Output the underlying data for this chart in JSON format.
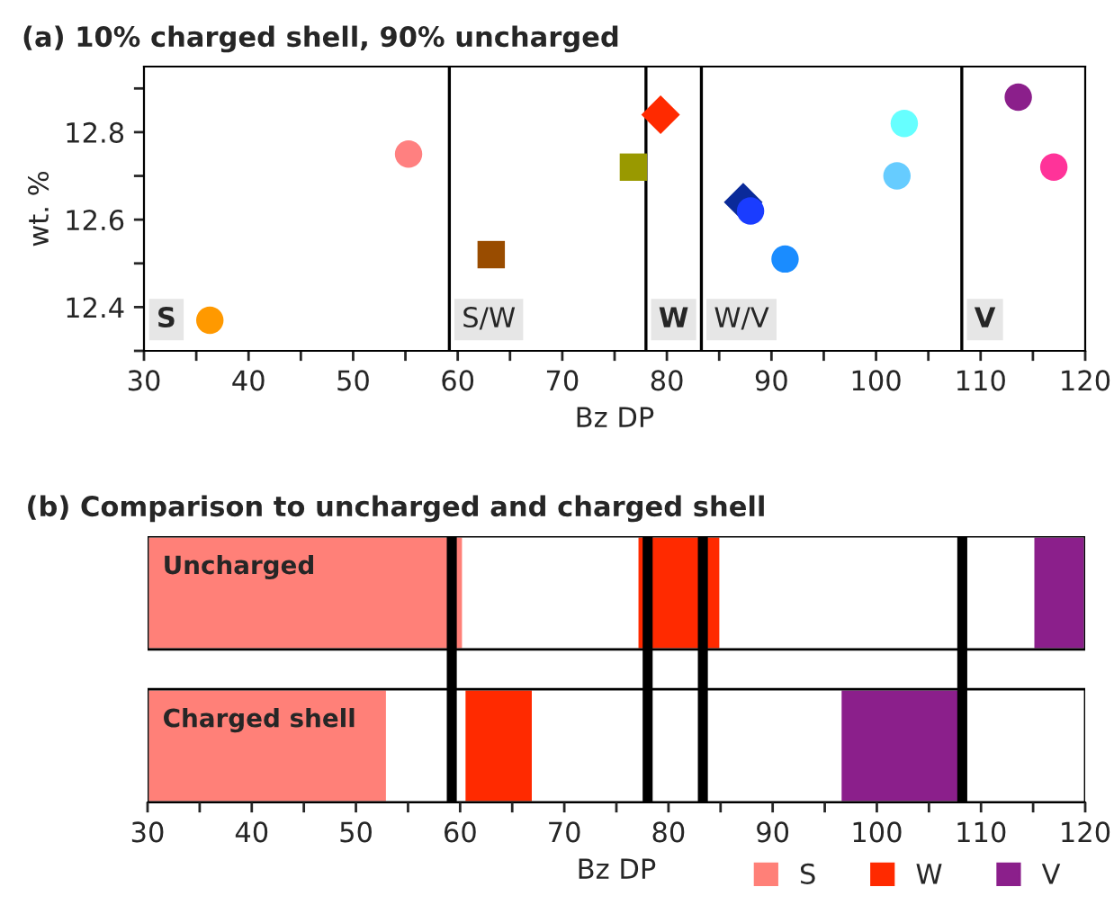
{
  "chart_data": [
    {
      "type": "scatter",
      "title": "(a) 10% charged shell, 90% uncharged",
      "xlabel": "Bz DP",
      "ylabel": "wt. %",
      "xlim": [
        30,
        120
      ],
      "xticks": [
        30,
        {
          "value": 35,
          "label": null
        },
        40,
        {
          "value": 45,
          "label": null
        },
        50,
        {
          "value": 55,
          "label": null
        },
        60,
        {
          "value": 65,
          "label": null
        },
        70,
        {
          "value": 75,
          "label": null
        },
        80,
        {
          "value": 85,
          "label": null
        },
        90,
        {
          "value": 95,
          "label": null
        },
        100,
        {
          "value": 105,
          "label": null
        },
        110,
        {
          "value": 115,
          "label": null
        },
        120
      ],
      "ylim": [
        12.3,
        12.95
      ],
      "yticks": [
        {
          "value": 12.3,
          "label": null
        },
        12.4,
        {
          "value": 12.5,
          "label": null
        },
        12.6,
        {
          "value": 12.7,
          "label": null
        },
        12.8,
        {
          "value": 12.9,
          "label": null
        }
      ],
      "grid": false,
      "series": [
        {
          "x": [
            36.3
          ],
          "values": [
            12.37
          ],
          "color": "#ff9900",
          "marker": "circle"
        },
        {
          "x": [
            55.3
          ],
          "values": [
            12.75
          ],
          "color": "#ff8080",
          "marker": "circle"
        },
        {
          "x": [
            63.2
          ],
          "values": [
            12.52
          ],
          "color": "#994c00",
          "marker": "square"
        },
        {
          "x": [
            76.8
          ],
          "values": [
            12.72
          ],
          "color": "#999900",
          "marker": "square"
        },
        {
          "x": [
            79.4
          ],
          "values": [
            12.84
          ],
          "color": "#ff2a00",
          "marker": "diamond"
        },
        {
          "x": [
            87.3
          ],
          "values": [
            12.64
          ],
          "color": "#0a2a99",
          "marker": "diamond"
        },
        {
          "x": [
            88.0
          ],
          "values": [
            12.62
          ],
          "color": "#1a3cff"
        },
        {
          "x": [
            91.3
          ],
          "values": [
            12.51
          ],
          "color": "#1a8cff"
        },
        {
          "x": [
            102.0
          ],
          "values": [
            12.7
          ],
          "color": "#66ccff"
        },
        {
          "x": [
            102.7
          ],
          "values": [
            12.82
          ],
          "color": "#66ffff"
        },
        {
          "x": [
            113.6
          ],
          "values": [
            12.88
          ],
          "color": "#8b1f8b"
        },
        {
          "x": [
            117.0
          ],
          "values": [
            12.72
          ],
          "color": "#ff3399"
        }
      ],
      "ref_lines": [
        {
          "axis": "x",
          "value": 59.2,
          "color": "#000000"
        },
        {
          "axis": "x",
          "value": 78.0,
          "color": "#000000"
        },
        {
          "axis": "x",
          "value": 83.3,
          "color": "#000000"
        },
        {
          "axis": "x",
          "value": 108.2,
          "color": "#000000"
        }
      ],
      "annotations": [
        "S",
        "S/W",
        "W",
        "W/V",
        "V"
      ]
    },
    {
      "type": "bar",
      "orientation": "horizontal",
      "title": "(b) Comparison to uncharged and charged shell",
      "xlabel": "Bz DP",
      "categories": [
        "Uncharged",
        "Charged shell"
      ],
      "xlim": [
        30,
        120
      ],
      "xticks": [
        30,
        {
          "value": 35,
          "label": null
        },
        40,
        {
          "value": 45,
          "label": null
        },
        50,
        {
          "value": 55,
          "label": null
        },
        60,
        {
          "value": 65,
          "label": null
        },
        70,
        {
          "value": 75,
          "label": null
        },
        80,
        {
          "value": 85,
          "label": null
        },
        90,
        {
          "value": 95,
          "label": null
        },
        100,
        {
          "value": 105,
          "label": null
        },
        110,
        {
          "value": 115,
          "label": null
        },
        120
      ],
      "grid": false,
      "legend": "bottom right",
      "series": [
        {
          "name": "S",
          "color": "#ff8078",
          "base": [
            30,
            30
          ],
          "values": [
            30.3,
            23
          ]
        },
        {
          "name": "W",
          "color": "#ff2a00",
          "base": [
            77,
            60.4
          ],
          "values": [
            8,
            6.6
          ]
        },
        {
          "name": "V",
          "color": "#8b1f8b",
          "base": [
            115,
            96.5
          ],
          "values": [
            5,
            11.5
          ]
        }
      ],
      "ref_lines": [
        {
          "axis": "x",
          "value": 59.2,
          "color": "#000000"
        },
        {
          "axis": "x",
          "value": 78.0,
          "color": "#000000"
        },
        {
          "axis": "x",
          "value": 83.3,
          "color": "#000000"
        },
        {
          "axis": "x",
          "value": 108.2,
          "color": "#000000"
        }
      ]
    }
  ]
}
